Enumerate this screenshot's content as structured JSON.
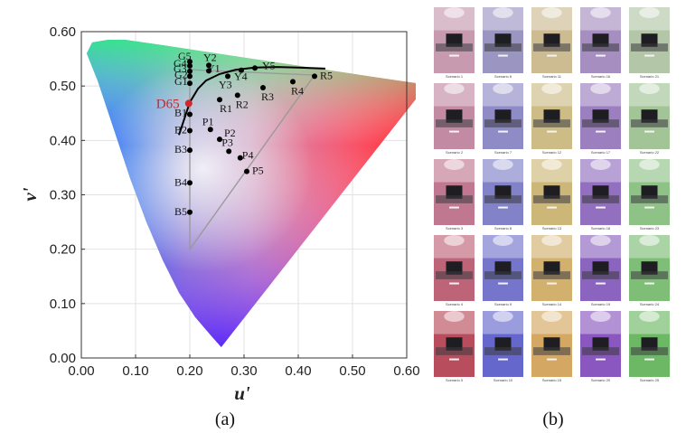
{
  "panels": {
    "a": "(a)",
    "b": "(b)"
  },
  "chart_data": {
    "type": "scatter",
    "title": "",
    "xlabel": "u'",
    "ylabel": "v'",
    "xlim": [
      0,
      0.6
    ],
    "ylim": [
      0,
      0.6
    ],
    "xticks": [
      "0.00",
      "0.10",
      "0.20",
      "0.30",
      "0.40",
      "0.50",
      "0.60"
    ],
    "yticks": [
      "0.00",
      "0.10",
      "0.20",
      "0.30",
      "0.40",
      "0.50",
      "0.60"
    ],
    "grid": true,
    "white_point": {
      "label": "D65",
      "u": 0.198,
      "v": 0.468,
      "color": "#d7262b"
    },
    "gamut_triangle": [
      [
        0.2,
        0.2
      ],
      [
        0.2,
        0.53
      ],
      [
        0.43,
        0.52
      ]
    ],
    "planckian_locus": [
      [
        0.18,
        0.41
      ],
      [
        0.19,
        0.44
      ],
      [
        0.2,
        0.47
      ],
      [
        0.215,
        0.495
      ],
      [
        0.23,
        0.51
      ],
      [
        0.255,
        0.522
      ],
      [
        0.285,
        0.53
      ],
      [
        0.32,
        0.534
      ],
      [
        0.36,
        0.535
      ],
      [
        0.4,
        0.534
      ],
      [
        0.45,
        0.532
      ]
    ],
    "points": [
      {
        "label": "G5",
        "u": 0.2,
        "v": 0.545
      },
      {
        "label": "G4",
        "u": 0.2,
        "v": 0.537
      },
      {
        "label": "G3",
        "u": 0.2,
        "v": 0.527
      },
      {
        "label": "G2",
        "u": 0.2,
        "v": 0.518
      },
      {
        "label": "G1",
        "u": 0.2,
        "v": 0.505
      },
      {
        "label": "Y2",
        "u": 0.235,
        "v": 0.538
      },
      {
        "label": "Y1",
        "u": 0.235,
        "v": 0.528
      },
      {
        "label": "Y3",
        "u": 0.27,
        "v": 0.518
      },
      {
        "label": "Y4",
        "u": 0.295,
        "v": 0.529
      },
      {
        "label": "Y5",
        "u": 0.32,
        "v": 0.533
      },
      {
        "label": "R1",
        "u": 0.255,
        "v": 0.475
      },
      {
        "label": "R2",
        "u": 0.288,
        "v": 0.483
      },
      {
        "label": "R3",
        "u": 0.335,
        "v": 0.497
      },
      {
        "label": "R4",
        "u": 0.39,
        "v": 0.508
      },
      {
        "label": "R5",
        "u": 0.43,
        "v": 0.518
      },
      {
        "label": "B1",
        "u": 0.2,
        "v": 0.448
      },
      {
        "label": "B2",
        "u": 0.2,
        "v": 0.418
      },
      {
        "label": "B3",
        "u": 0.2,
        "v": 0.382
      },
      {
        "label": "B4",
        "u": 0.2,
        "v": 0.322
      },
      {
        "label": "B5",
        "u": 0.2,
        "v": 0.268
      },
      {
        "label": "P1",
        "u": 0.238,
        "v": 0.42
      },
      {
        "label": "P2",
        "u": 0.255,
        "v": 0.402
      },
      {
        "label": "P3",
        "u": 0.272,
        "v": 0.38
      },
      {
        "label": "P4",
        "u": 0.293,
        "v": 0.368
      },
      {
        "label": "P5",
        "u": 0.305,
        "v": 0.343
      }
    ]
  },
  "scenes": [
    {
      "caption": "Scenario 1",
      "tint": "#c79ab0"
    },
    {
      "caption": "Scenario 6",
      "tint": "#9b95c2"
    },
    {
      "caption": "Scenario 11",
      "tint": "#cdbb92"
    },
    {
      "caption": "Scenario 16",
      "tint": "#a68fc0"
    },
    {
      "caption": "Scenario 21",
      "tint": "#b3c6a7"
    },
    {
      "caption": "Scenario 2",
      "tint": "#c28aa3"
    },
    {
      "caption": "Scenario 7",
      "tint": "#8f8bc6"
    },
    {
      "caption": "Scenario 12",
      "tint": "#cdbc86"
    },
    {
      "caption": "Scenario 17",
      "tint": "#9c7fbf"
    },
    {
      "caption": "Scenario 22",
      "tint": "#a2c496"
    },
    {
      "caption": "Scenario 3",
      "tint": "#c07890"
    },
    {
      "caption": "Scenario 8",
      "tint": "#8282c9"
    },
    {
      "caption": "Scenario 13",
      "tint": "#cdb778"
    },
    {
      "caption": "Scenario 18",
      "tint": "#9270bf"
    },
    {
      "caption": "Scenario 23",
      "tint": "#8fc287"
    },
    {
      "caption": "Scenario 4",
      "tint": "#bd6478"
    },
    {
      "caption": "Scenario 9",
      "tint": "#7475cb"
    },
    {
      "caption": "Scenario 14",
      "tint": "#d2b06d"
    },
    {
      "caption": "Scenario 19",
      "tint": "#8a64be"
    },
    {
      "caption": "Scenario 24",
      "tint": "#7fbe77"
    },
    {
      "caption": "Scenario 5",
      "tint": "#b84e5d"
    },
    {
      "caption": "Scenario 10",
      "tint": "#6667cd"
    },
    {
      "caption": "Scenario 15",
      "tint": "#d4a862"
    },
    {
      "caption": "Scenario 20",
      "tint": "#8a56bf"
    },
    {
      "caption": "Scenario 25",
      "tint": "#6db865"
    }
  ]
}
